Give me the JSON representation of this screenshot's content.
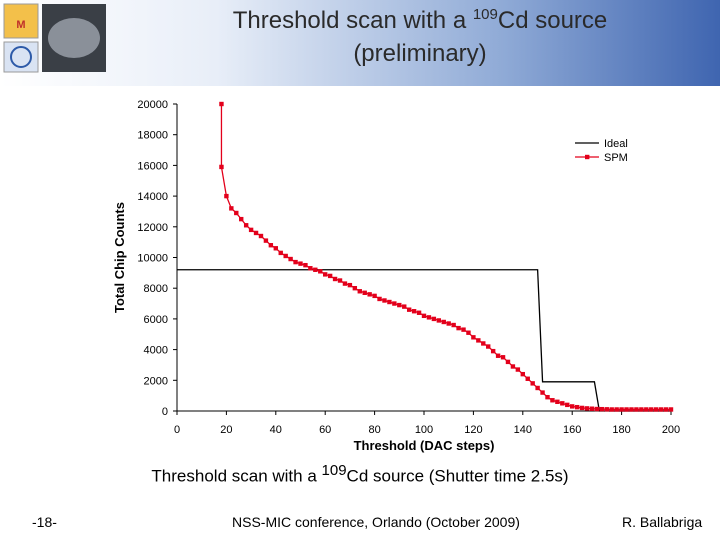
{
  "slide": {
    "title": {
      "pre": "Threshold scan with a ",
      "sup": "109",
      "post": "Cd source",
      "line2": "(preliminary)"
    },
    "caption": {
      "pre": "Threshold scan with a ",
      "sup": "109",
      "post": "Cd source (Shutter time 2.5s)"
    },
    "footer": {
      "page": "-18-",
      "conference": "NSS-MIC conference, Orlando (October 2009)",
      "author": "R. Ballabriga"
    }
  },
  "chart_data": {
    "type": "line",
    "x_label": "Threshold (DAC steps)",
    "y_label": "Total Chip Counts",
    "xlim": [
      0,
      200
    ],
    "xticks": [
      0,
      20,
      40,
      60,
      80,
      100,
      120,
      140,
      160,
      180,
      200
    ],
    "ylim": [
      0,
      20000
    ],
    "yticks": [
      0,
      2000,
      4000,
      6000,
      8000,
      10000,
      12000,
      14000,
      16000,
      18000,
      20000
    ],
    "grid": false,
    "legend": "upper right",
    "series": [
      {
        "name": "Ideal",
        "color": "#000000",
        "marker": false,
        "x": [
          0,
          146,
          148,
          169,
          171,
          200
        ],
        "values": [
          9200,
          9200,
          1900,
          1900,
          0,
          0
        ]
      },
      {
        "name": "SPM",
        "color": "#e3001b",
        "marker": true,
        "x": [
          18,
          18,
          20,
          22,
          24,
          26,
          28,
          30,
          32,
          34,
          36,
          38,
          40,
          42,
          44,
          46,
          48,
          50,
          52,
          54,
          56,
          58,
          60,
          62,
          64,
          66,
          68,
          70,
          72,
          74,
          76,
          78,
          80,
          82,
          84,
          86,
          88,
          90,
          92,
          94,
          96,
          98,
          100,
          102,
          104,
          106,
          108,
          110,
          112,
          114,
          116,
          118,
          120,
          122,
          124,
          126,
          128,
          130,
          132,
          134,
          136,
          138,
          140,
          142,
          144,
          146,
          148,
          150,
          152,
          154,
          156,
          158,
          160,
          162,
          164,
          166,
          168,
          170,
          172,
          174,
          176,
          178,
          180,
          182,
          184,
          186,
          188,
          190,
          192,
          194,
          196,
          198,
          200
        ],
        "values": [
          20000,
          15900,
          14000,
          13200,
          12900,
          12500,
          12100,
          11800,
          11600,
          11400,
          11100,
          10800,
          10600,
          10300,
          10100,
          9900,
          9700,
          9600,
          9500,
          9300,
          9200,
          9100,
          8900,
          8800,
          8600,
          8500,
          8300,
          8200,
          8000,
          7800,
          7700,
          7600,
          7500,
          7300,
          7200,
          7100,
          7000,
          6900,
          6800,
          6600,
          6500,
          6400,
          6200,
          6100,
          6000,
          5900,
          5800,
          5700,
          5600,
          5400,
          5300,
          5100,
          4800,
          4600,
          4400,
          4200,
          3900,
          3600,
          3500,
          3200,
          2900,
          2700,
          2400,
          2100,
          1800,
          1500,
          1200,
          900,
          700,
          600,
          500,
          400,
          300,
          250,
          200,
          170,
          150,
          130,
          120,
          110,
          100,
          100,
          100,
          100,
          100,
          100,
          100,
          100,
          100,
          100,
          100,
          100,
          100
        ]
      }
    ]
  }
}
